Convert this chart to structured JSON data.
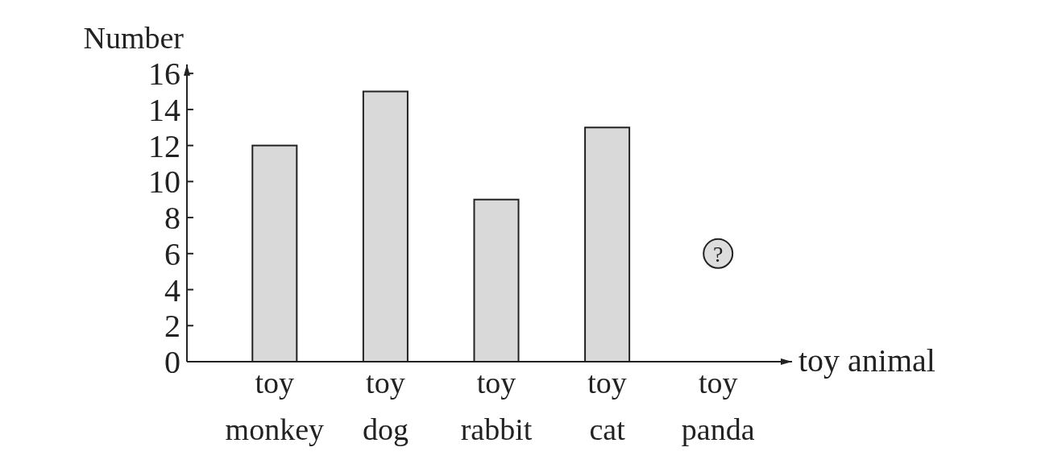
{
  "chart_data": {
    "type": "bar",
    "xlabel": "toy animal",
    "ylabel": "Number",
    "categories": [
      "toy monkey",
      "toy dog",
      "toy rabbit",
      "toy cat",
      "toy panda"
    ],
    "values": [
      12,
      15,
      9,
      13,
      null
    ],
    "color": "#d9d9d9",
    "ylim": [
      0,
      16.5
    ],
    "yticks": [
      0,
      2,
      4,
      6,
      8,
      10,
      12,
      14,
      16
    ],
    "grid": false,
    "annotations": [
      {
        "text": "?",
        "x": "toy panda",
        "y": 6
      }
    ]
  }
}
